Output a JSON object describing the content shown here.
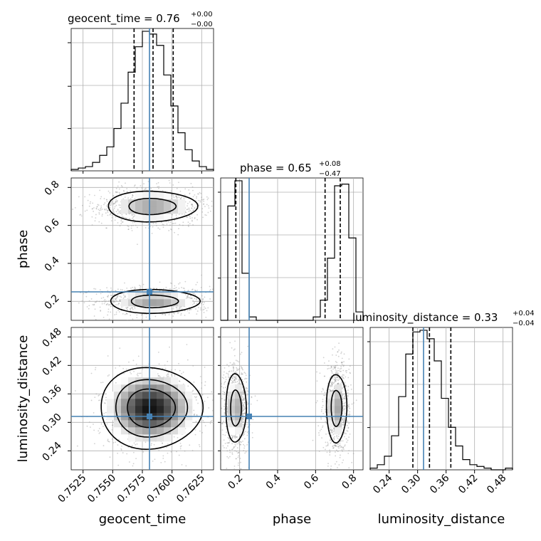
{
  "chart_data": {
    "type": "corner",
    "title": "",
    "parameters": [
      {
        "name": "geocent_time",
        "axis_label": "geocent_time",
        "range": [
          0.7515,
          0.7635
        ],
        "ticks": [
          0.7525,
          0.755,
          0.7575,
          0.76,
          0.7625
        ],
        "tick_labels": [
          "0.7525",
          "0.7550",
          "0.7575",
          "0.7600",
          "0.7625"
        ],
        "title": {
          "main": "geocent_time = 0.76",
          "sup": "+0.00",
          "sub": "−0.00"
        },
        "injection": 0.7581,
        "quantiles": [
          0.7568,
          0.7584,
          0.7601
        ],
        "histogram": {
          "edges_start": 0.7515,
          "bin_width": 0.0006,
          "counts": [
            1,
            2,
            3,
            6,
            11,
            17,
            30,
            48,
            70,
            88,
            99,
            97,
            89,
            68,
            46,
            27,
            15,
            7,
            3,
            1
          ]
        }
      },
      {
        "name": "phase",
        "axis_label": "phase",
        "range": [
          0.1,
          0.85
        ],
        "ticks": [
          0.2,
          0.4,
          0.6,
          0.8
        ],
        "tick_labels": [
          "0.2",
          "0.4",
          "0.6",
          "0.8"
        ],
        "title": {
          "main": "phase = 0.65",
          "sup": "+0.08",
          "sub": "−0.47"
        },
        "injection": 0.25,
        "quantiles": [
          0.18,
          0.65,
          0.73
        ],
        "histogram": {
          "edges_start": 0.1,
          "bin_width": 0.0375,
          "counts": [
            0,
            68,
            83,
            28,
            2,
            0,
            0,
            0,
            0,
            0,
            0,
            0,
            0,
            2,
            12,
            37,
            80,
            81,
            49,
            5
          ]
        }
      },
      {
        "name": "luminosity_distance",
        "axis_label": "luminosity_distance",
        "range": [
          0.2,
          0.5
        ],
        "ticks": [
          0.24,
          0.3,
          0.36,
          0.42,
          0.48
        ],
        "tick_labels": [
          "0.24",
          "0.30",
          "0.36",
          "0.42",
          "0.48"
        ],
        "title": {
          "main": "luminosity_distance = 0.33",
          "sup": "+0.04",
          "sub": "−0.04"
        },
        "injection": 0.3125,
        "quantiles": [
          0.29,
          0.325,
          0.37
        ],
        "histogram": {
          "edges_start": 0.2,
          "bin_width": 0.015,
          "counts": [
            1,
            3,
            8,
            20,
            43,
            68,
            81,
            82,
            77,
            64,
            42,
            25,
            14,
            6,
            3,
            2,
            1,
            0,
            0,
            1
          ]
        }
      }
    ],
    "pairs": [
      {
        "x": "geocent_time",
        "y": "phase",
        "modes": [
          {
            "x": 0.7583,
            "y": 0.7,
            "sx": 0.0021,
            "sy": 0.045,
            "w": 0.5
          },
          {
            "x": 0.7585,
            "y": 0.2,
            "sx": 0.0021,
            "sy": 0.035,
            "w": 0.5
          }
        ]
      },
      {
        "x": "geocent_time",
        "y": "luminosity_distance",
        "modes": [
          {
            "x": 0.7582,
            "y": 0.33,
            "sx": 0.002,
            "sy": 0.04,
            "w": 1.0
          }
        ]
      },
      {
        "x": "phase",
        "y": "luminosity_distance",
        "modes": [
          {
            "x": 0.18,
            "y": 0.33,
            "sx": 0.03,
            "sy": 0.04,
            "w": 0.5
          },
          {
            "x": 0.71,
            "y": 0.33,
            "sx": 0.03,
            "sy": 0.04,
            "w": 0.5
          }
        ]
      }
    ],
    "injection_color": "#4682b4",
    "grid": true
  }
}
